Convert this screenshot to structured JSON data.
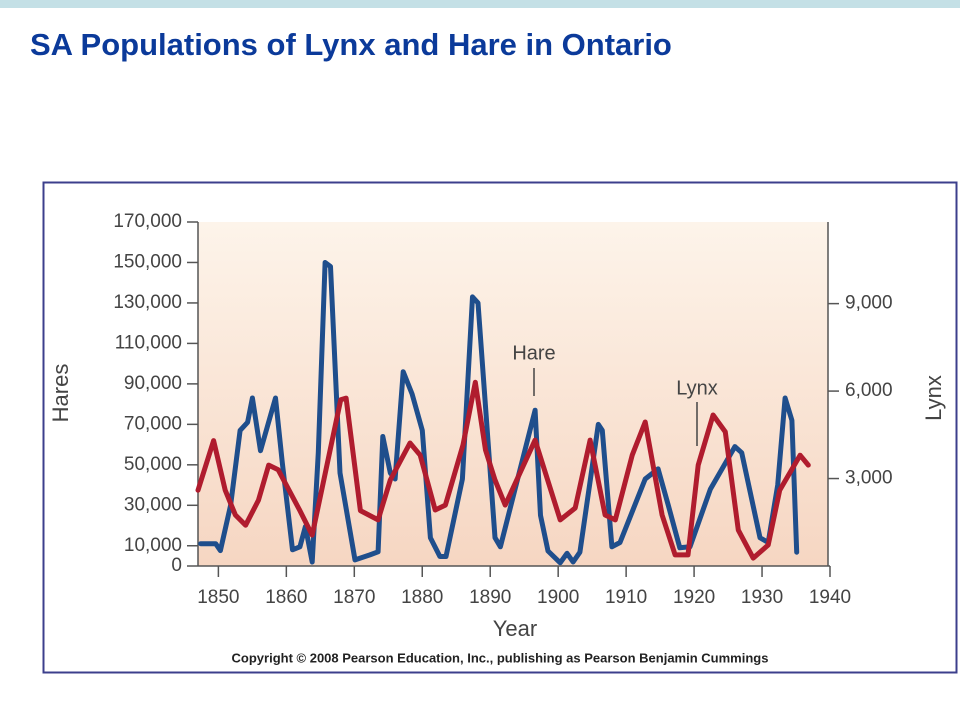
{
  "chart_data": {
    "type": "line",
    "title": "SA Populations of Lynx and Hare in Ontario",
    "xlabel": "Year",
    "ylabel": "Hares",
    "y2label": "Lynx",
    "copyright": "Copyright © 2008 Pearson Education, Inc., publishing as Pearson Benjamin Cummings",
    "annotations": [
      "Hare",
      "Lynx"
    ],
    "xlim": [
      1847,
      1940
    ],
    "xticks": [
      1850,
      1860,
      1870,
      1880,
      1890,
      1900,
      1910,
      1920,
      1930,
      1940
    ],
    "ylim": [
      0,
      170000
    ],
    "yticks": [
      0,
      {
        "value": 10000,
        "label": "10,000"
      },
      {
        "value": 30000,
        "label": "30,000"
      },
      {
        "value": 50000,
        "label": "50,000"
      },
      {
        "value": 70000,
        "label": "70,000"
      },
      {
        "value": 90000,
        "label": "90,000"
      },
      {
        "value": 110000,
        "label": "110,000"
      },
      {
        "value": 130000,
        "label": "130,000"
      },
      {
        "value": 150000,
        "label": "150,000"
      },
      {
        "value": 170000,
        "label": "170,000"
      }
    ],
    "y2lim": [
      0,
      11800
    ],
    "y2ticks": [
      {
        "value": 3000,
        "label": "3,000"
      },
      {
        "value": 6000,
        "label": "6,000"
      },
      {
        "value": 9000,
        "label": "9,000"
      }
    ],
    "series": [
      {
        "name": "Hare",
        "color": "#1f4e8c",
        "x": [
          1847.4,
          1849.6,
          1850.3,
          1851.8,
          1853.2,
          1854.3,
          1855,
          1856.2,
          1858.4,
          1859.4,
          1860.9,
          1862,
          1862.8,
          1863.8,
          1864.7,
          1865.7,
          1866.5,
          1867.9,
          1870.1,
          1872.3,
          1873.5,
          1874.2,
          1875.3,
          1876,
          1877.2,
          1878.5,
          1880,
          1881.2,
          1882.6,
          1883.5,
          1885.9,
          1887.4,
          1888.2,
          1890.7,
          1891.5,
          1896.6,
          1897.4,
          1898.5,
          1900.3,
          1901.3,
          1902.2,
          1903.2,
          1905.9,
          1906.5,
          1907.9,
          1909.1,
          1912.8,
          1914.7,
          1916.2,
          1917.9,
          1919.4,
          1922.4,
          1926,
          1927,
          1929.7,
          1930.9,
          1932.3,
          1933.4,
          1934.4,
          1935.1
        ],
        "values": [
          11000,
          11000,
          7600,
          30000,
          67000,
          71000,
          83000,
          57000,
          83000,
          51000,
          8000,
          9500,
          19500,
          2000,
          56000,
          150000,
          148000,
          46000,
          3000,
          5500,
          7000,
          64000,
          46000,
          43000,
          96000,
          85000,
          67000,
          14000,
          4700,
          4700,
          43000,
          133000,
          130000,
          14000,
          9500,
          77000,
          25000,
          7400,
          1600,
          6300,
          2000,
          6800,
          70000,
          67000,
          9500,
          11600,
          43000,
          48000,
          30000,
          9000,
          9500,
          38000,
          59000,
          56000,
          14000,
          11600,
          40000,
          83000,
          72000,
          6800
        ]
      },
      {
        "name": "Lynx",
        "color": "#b01c2e",
        "axis": "y2",
        "x": [
          1847,
          1849.3,
          1851,
          1852.5,
          1854,
          1855.9,
          1857.4,
          1858.8,
          1862,
          1863.8,
          1868,
          1868.8,
          1870.9,
          1873.5,
          1875.3,
          1878.2,
          1879.7,
          1881.9,
          1883.4,
          1886,
          1887.8,
          1889.3,
          1890.7,
          1892.2,
          1896.6,
          1900.3,
          1902.5,
          1904.7,
          1906.9,
          1908.4,
          1910.9,
          1912.8,
          1915.3,
          1917.2,
          1919.1,
          1920.6,
          1922.8,
          1924.6,
          1926.5,
          1928.7,
          1930.9,
          1932.6,
          1935.6,
          1936.8
        ],
        "values": [
          2600,
          4300,
          2600,
          1750,
          1400,
          2260,
          3460,
          3300,
          1900,
          1060,
          5700,
          5760,
          1900,
          1580,
          2950,
          4220,
          3800,
          1920,
          2090,
          4150,
          6300,
          3980,
          2950,
          2090,
          4320,
          1580,
          1990,
          4320,
          1750,
          1580,
          3800,
          4940,
          1750,
          380,
          380,
          3460,
          5180,
          4600,
          1230,
          270,
          720,
          2600,
          3800,
          3460
        ]
      }
    ]
  }
}
